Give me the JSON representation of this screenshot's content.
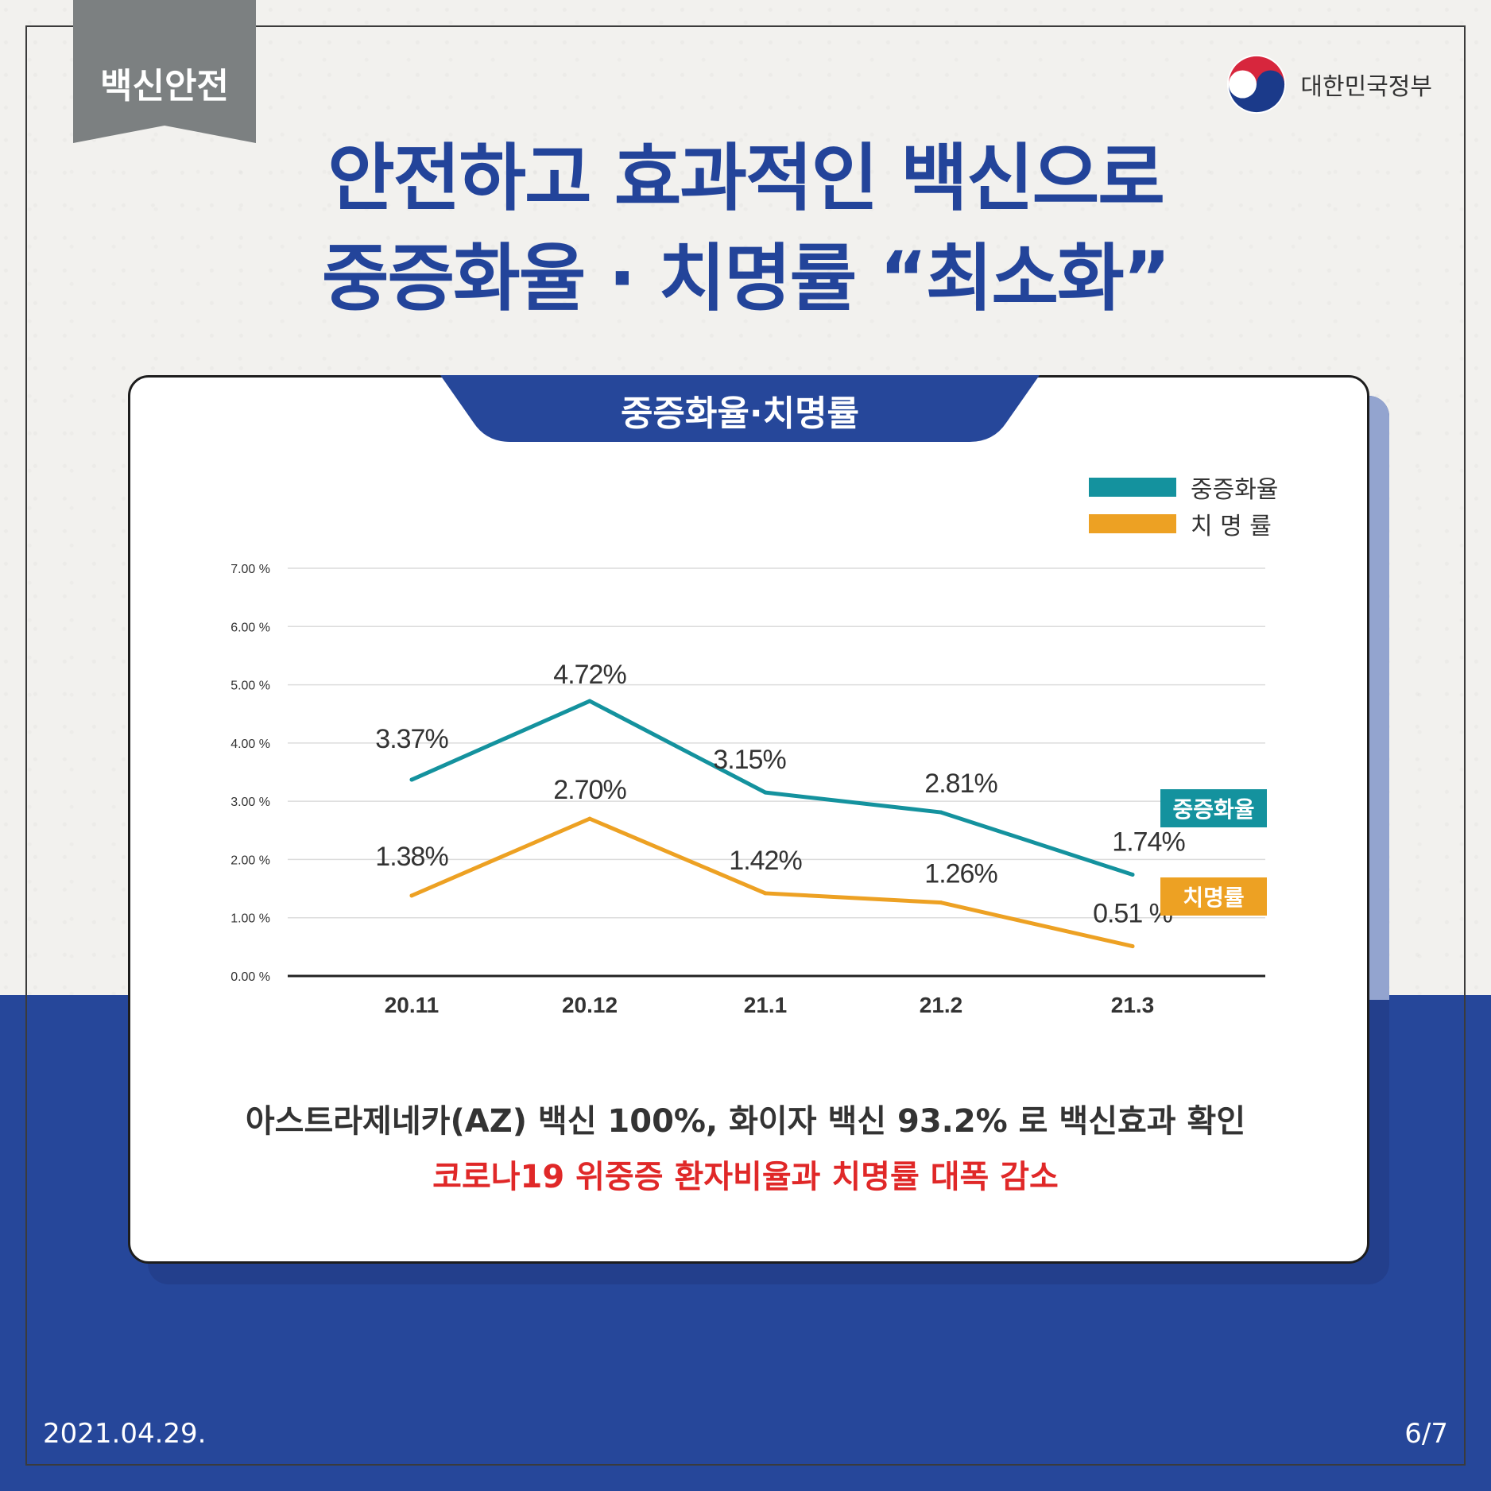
{
  "category_tag": "백신안전",
  "government_label": "대한민국정부",
  "headline": {
    "line1": "안전하고 효과적인 백신으로",
    "line2": "중증화율 · 치명률 “최소화”"
  },
  "card_title": "중증화율·치명률",
  "description": {
    "line1": "아스트라제네카(AZ) 백신 100%, 화이자 백신 93.2% 로 백신효과 확인",
    "line2": "코로나19 위중증 환자비율과 치명률 대폭 감소"
  },
  "footer": {
    "date": "2021.04.29.",
    "page": "6/7"
  },
  "colors": {
    "brand_blue": "#26479a",
    "severe": "#14929e",
    "fatality": "#eda123",
    "highlight_red": "#e02828"
  },
  "chart_data": {
    "type": "line",
    "title": "중증화율·치명률",
    "categories": [
      "20.11",
      "20.12",
      "21.1",
      "21.2",
      "21.3"
    ],
    "y_ticks": [
      "7.00 %",
      "6.00 %",
      "5.00 %",
      "4.00 %",
      "3.00 %",
      "2.00 %",
      "1.00 %",
      "0.00 %"
    ],
    "ylim": [
      0,
      7
    ],
    "grid": true,
    "legend_position": "top-right",
    "legend_labels": [
      "중증화율",
      "치 명 률"
    ],
    "series": [
      {
        "name": "중증화율",
        "end_label": "중증화율",
        "color": "#14929e",
        "values": [
          3.37,
          4.72,
          3.15,
          2.81,
          1.74
        ],
        "labels": [
          "3.37%",
          "4.72%",
          "3.15%",
          "2.81%",
          "1.74%"
        ]
      },
      {
        "name": "치명률",
        "end_label": "치명률",
        "color": "#eda123",
        "values": [
          1.38,
          2.7,
          1.42,
          1.26,
          0.51
        ],
        "labels": [
          "1.38%",
          "2.70%",
          "1.42%",
          "1.26%",
          "0.51 %"
        ]
      }
    ]
  }
}
